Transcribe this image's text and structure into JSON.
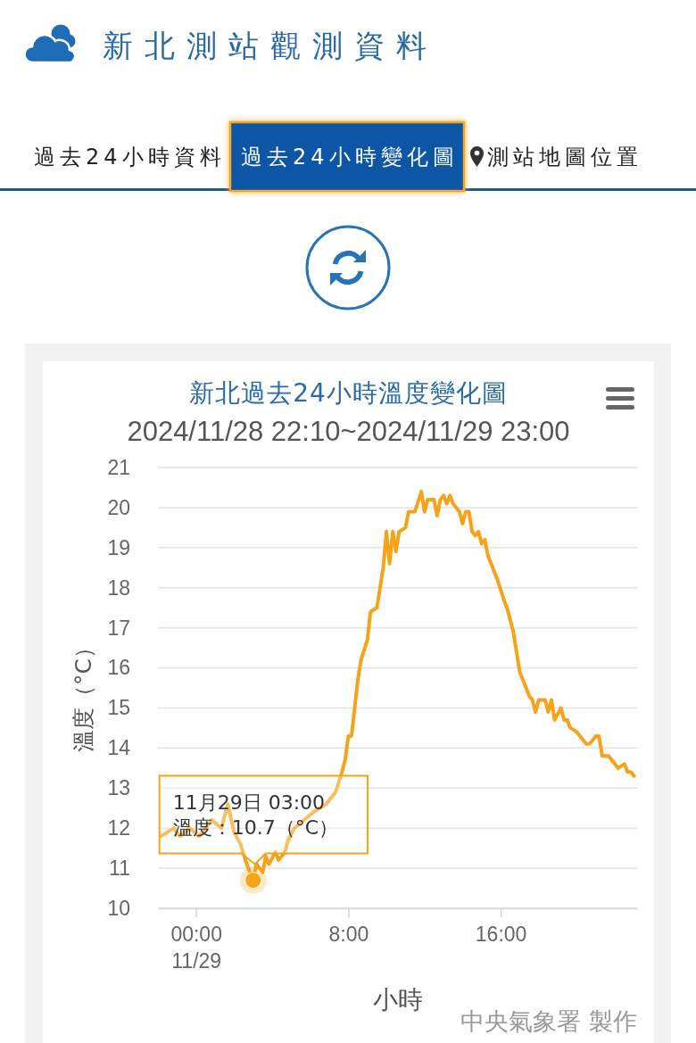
{
  "chart_data": {
    "type": "line",
    "title": "新北過去24小時溫度變化圖",
    "subtitle": "2024/11/28 22:10~2024/11/29 23:00",
    "xlabel": "小時",
    "ylabel": "溫度（°C）",
    "x": [
      "2024-11-28T22:10",
      "2024-11-28T22:50",
      "2024-11-28T23:10",
      "2024-11-28T23:40",
      "2024-11-29T00:10",
      "2024-11-29T00:50",
      "2024-11-29T01:20",
      "2024-11-29T01:40",
      "2024-11-29T02:00",
      "2024-11-29T02:20",
      "2024-11-29T02:40",
      "2024-11-29T03:00",
      "2024-11-29T03:10",
      "2024-11-29T03:30",
      "2024-11-29T03:40",
      "2024-11-29T03:50",
      "2024-11-29T04:10",
      "2024-11-29T04:20",
      "2024-11-29T04:40",
      "2024-11-29T04:50",
      "2024-11-29T05:10",
      "2024-11-29T05:40",
      "2024-11-29T06:10",
      "2024-11-29T06:50",
      "2024-11-29T07:20",
      "2024-11-29T07:40",
      "2024-11-29T07:50",
      "2024-11-29T08:00",
      "2024-11-29T08:10",
      "2024-11-29T08:30",
      "2024-11-29T08:40",
      "2024-11-29T09:00",
      "2024-11-29T09:10",
      "2024-11-29T09:30",
      "2024-11-29T09:40",
      "2024-11-29T09:50",
      "2024-11-29T10:00",
      "2024-11-29T10:10",
      "2024-11-29T10:20",
      "2024-11-29T10:30",
      "2024-11-29T10:40",
      "2024-11-29T11:00",
      "2024-11-29T11:10",
      "2024-11-29T11:30",
      "2024-11-29T11:50",
      "2024-11-29T12:00",
      "2024-11-29T12:10",
      "2024-11-29T12:30",
      "2024-11-29T12:40",
      "2024-11-29T12:50",
      "2024-11-29T13:00",
      "2024-11-29T13:10",
      "2024-11-29T13:20",
      "2024-11-29T13:30",
      "2024-11-29T13:50",
      "2024-11-29T14:00",
      "2024-11-29T14:10",
      "2024-11-29T14:20",
      "2024-11-29T14:30",
      "2024-11-29T14:40",
      "2024-11-29T14:50",
      "2024-11-29T15:00",
      "2024-11-29T15:10",
      "2024-11-29T15:20",
      "2024-11-29T15:30",
      "2024-11-29T15:50",
      "2024-11-29T16:10",
      "2024-11-29T16:20",
      "2024-11-29T16:40",
      "2024-11-29T16:50",
      "2024-11-29T17:00",
      "2024-11-29T17:10",
      "2024-11-29T17:30",
      "2024-11-29T17:40",
      "2024-11-29T17:50",
      "2024-11-29T18:00",
      "2024-11-29T18:20",
      "2024-11-29T18:30",
      "2024-11-29T18:40",
      "2024-11-29T18:50",
      "2024-11-29T19:10",
      "2024-11-29T19:20",
      "2024-11-29T19:30",
      "2024-11-29T19:40",
      "2024-11-29T20:00",
      "2024-11-29T20:10",
      "2024-11-29T20:30",
      "2024-11-29T20:40",
      "2024-11-29T21:00",
      "2024-11-29T21:10",
      "2024-11-29T21:20",
      "2024-11-29T21:40",
      "2024-11-29T22:00",
      "2024-11-29T22:10",
      "2024-11-29T22:30",
      "2024-11-29T22:40",
      "2024-11-29T22:50",
      "2024-11-29T23:00"
    ],
    "series": [
      {
        "color": "#f6a31a",
        "values": [
          11.8,
          12.0,
          11.8,
          12.0,
          11.8,
          12.2,
          12.0,
          12.6,
          11.9,
          11.6,
          11.1,
          10.7,
          11.1,
          10.9,
          11.3,
          11.1,
          11.4,
          11.2,
          11.4,
          11.7,
          12.0,
          12.2,
          12.4,
          12.6,
          12.9,
          13.4,
          13.7,
          14.3,
          14.3,
          15.7,
          16.2,
          16.7,
          17.4,
          17.5,
          18.0,
          18.5,
          19.4,
          18.6,
          19.4,
          18.9,
          19.4,
          19.5,
          19.9,
          19.9,
          20.4,
          19.9,
          20.2,
          20.2,
          19.8,
          20.2,
          20.3,
          20.1,
          20.3,
          20.1,
          19.9,
          19.6,
          19.9,
          19.9,
          19.4,
          19.3,
          19.4,
          19.1,
          19.2,
          18.8,
          18.6,
          18.2,
          17.7,
          17.5,
          16.9,
          16.4,
          15.9,
          15.7,
          15.3,
          15.2,
          14.9,
          15.2,
          15.2,
          14.9,
          15.2,
          14.7,
          15.0,
          14.7,
          14.7,
          14.5,
          14.4,
          14.3,
          14.1,
          14.1,
          14.3,
          14.3,
          13.8,
          13.8,
          13.6,
          13.5,
          13.6,
          13.4,
          13.4,
          13.3
        ]
      }
    ],
    "xlim": [
      "2024-11-28T22:00",
      "2024-11-29T23:10"
    ],
    "xticks": [
      {
        "value": "2024-11-29T00:00",
        "label": "00:00\n11/29"
      },
      {
        "value": "2024-11-29T08:00",
        "label": "8:00"
      },
      {
        "value": "2024-11-29T16:00",
        "label": "16:00"
      }
    ],
    "ylim": [
      10,
      21
    ],
    "yticks": [
      10,
      11,
      12,
      13,
      14,
      15,
      16,
      17,
      18,
      19,
      20,
      21
    ],
    "grid": "y",
    "annotations": [
      "新北測站觀測資料",
      "過去24小時資料",
      "過去24小時變化圖",
      "測站地圖位置",
      {
        "text": "11月29日 03:00\n溫度：10.7（°C）",
        "x": "2024-11-29T03:00",
        "y": 10.7
      },
      "中央氣象署 製作"
    ]
  }
}
